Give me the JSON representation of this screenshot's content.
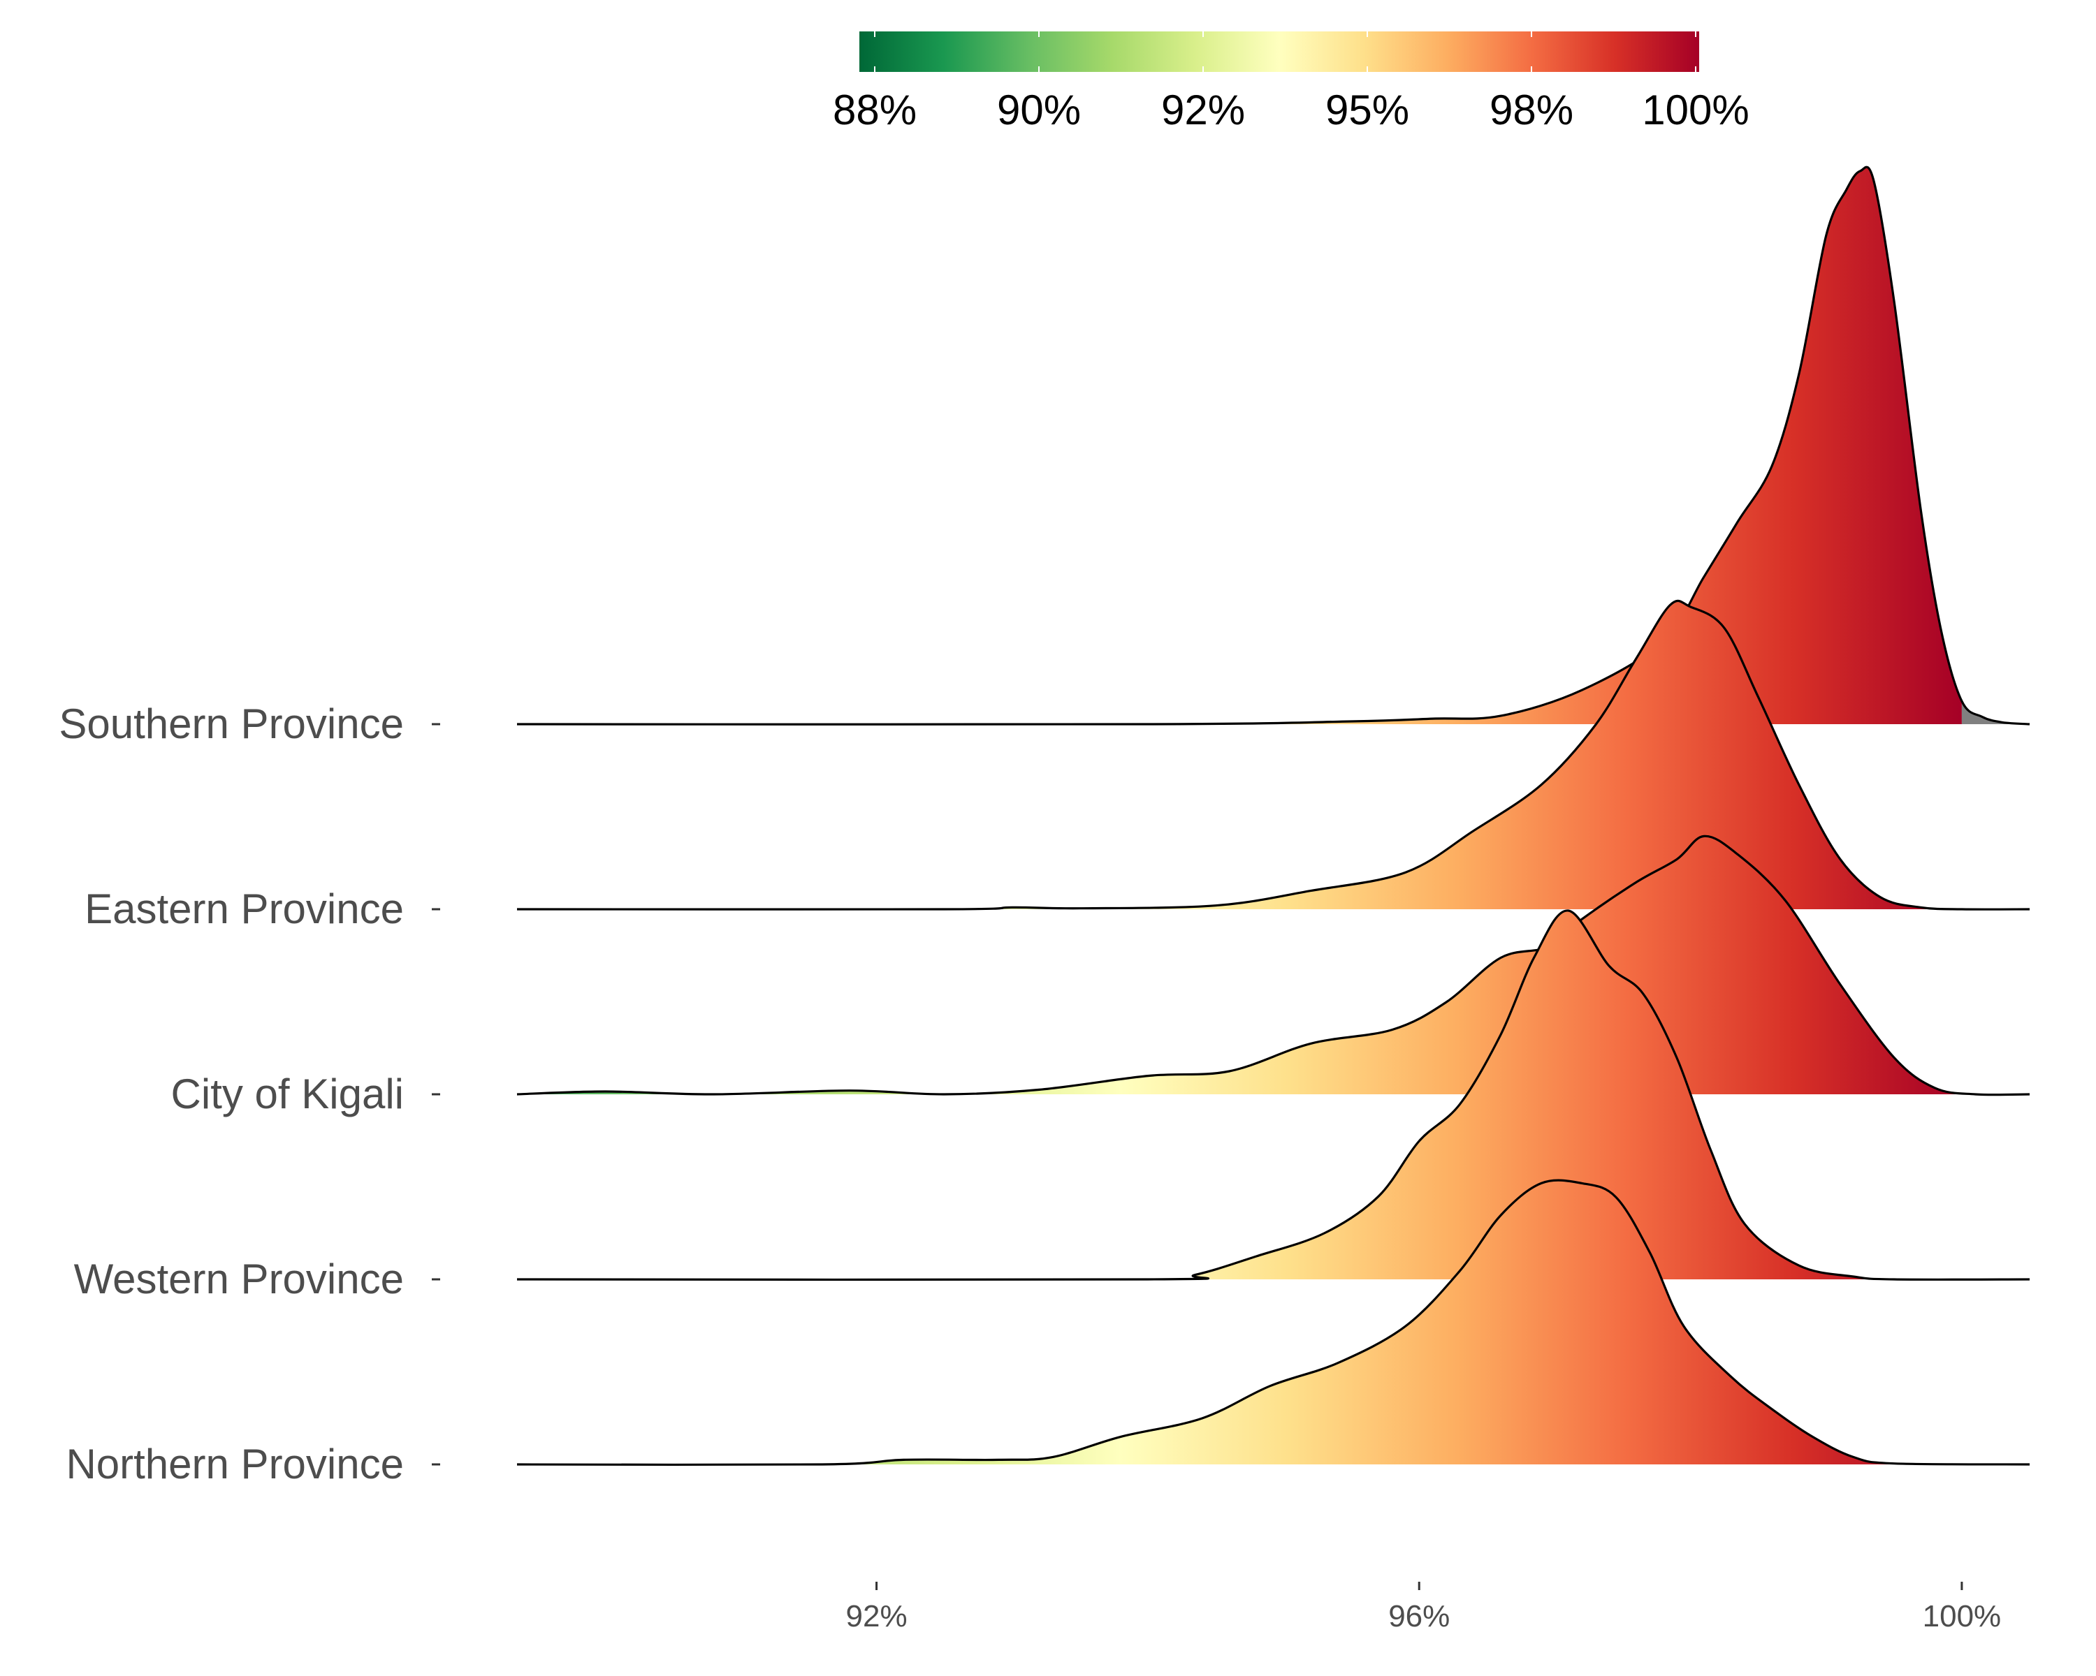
{
  "chart_data": {
    "type": "ridgeline",
    "title": "",
    "xlabel": "",
    "ylabel": "",
    "xlim": [
      89.35,
      100.5
    ],
    "x_ticks": [
      92,
      96,
      100
    ],
    "x_tick_labels": [
      "92%",
      "96%",
      "100%"
    ],
    "color_scale": {
      "palette": "RdYlGn (reversed)",
      "tick_labels": [
        "88%",
        "90%",
        "92%",
        "95%",
        "98%",
        "100%"
      ],
      "legend_position": "top",
      "stops": [
        {
          "offset": 0.0,
          "color": "#006837"
        },
        {
          "offset": 0.1,
          "color": "#1a9850"
        },
        {
          "offset": 0.2,
          "color": "#66bd63"
        },
        {
          "offset": 0.3,
          "color": "#a6d96a"
        },
        {
          "offset": 0.4,
          "color": "#d9ef8b"
        },
        {
          "offset": 0.5,
          "color": "#ffffbf"
        },
        {
          "offset": 0.6,
          "color": "#fee08b"
        },
        {
          "offset": 0.7,
          "color": "#fdae61"
        },
        {
          "offset": 0.8,
          "color": "#f46d43"
        },
        {
          "offset": 0.9,
          "color": "#d73027"
        },
        {
          "offset": 1.0,
          "color": "#a50026"
        }
      ],
      "out_of_range_color": "#808080"
    },
    "series": [
      {
        "name": "Southern Province",
        "density_points": [
          [
            89.35,
            0
          ],
          [
            94,
            0
          ],
          [
            95.5,
            0.03
          ],
          [
            96.1,
            0.06
          ],
          [
            96.6,
            0.09
          ],
          [
            97.2,
            0.37
          ],
          [
            97.8,
            0.9
          ],
          [
            98.1,
            1.6
          ],
          [
            98.35,
            2.2
          ],
          [
            98.6,
            2.8
          ],
          [
            98.8,
            3.8
          ],
          [
            99.0,
            5.3
          ],
          [
            99.15,
            5.8
          ],
          [
            99.25,
            6.0
          ],
          [
            99.35,
            5.9
          ],
          [
            99.5,
            4.6
          ],
          [
            99.7,
            2.3
          ],
          [
            99.85,
            1.0
          ],
          [
            100.0,
            0.25
          ],
          [
            100.15,
            0.08
          ],
          [
            100.3,
            0.02
          ],
          [
            100.5,
            0
          ]
        ]
      },
      {
        "name": "Eastern Province",
        "density_points": [
          [
            89.35,
            0
          ],
          [
            92.5,
            0
          ],
          [
            93.0,
            0.02
          ],
          [
            93.5,
            0.01
          ],
          [
            94.5,
            0.04
          ],
          [
            95.2,
            0.2
          ],
          [
            95.9,
            0.4
          ],
          [
            96.4,
            0.85
          ],
          [
            96.9,
            1.35
          ],
          [
            97.3,
            2.0
          ],
          [
            97.6,
            2.72
          ],
          [
            97.85,
            3.3
          ],
          [
            98.0,
            3.28
          ],
          [
            98.25,
            3.05
          ],
          [
            98.5,
            2.3
          ],
          [
            98.8,
            1.35
          ],
          [
            99.1,
            0.55
          ],
          [
            99.4,
            0.13
          ],
          [
            99.7,
            0.02
          ],
          [
            100.0,
            0
          ],
          [
            100.5,
            0
          ]
        ]
      },
      {
        "name": "City of Kigali",
        "density_points": [
          [
            89.35,
            0
          ],
          [
            90.0,
            0.03
          ],
          [
            90.8,
            0
          ],
          [
            91.8,
            0.04
          ],
          [
            92.5,
            0
          ],
          [
            93.2,
            0.05
          ],
          [
            94.0,
            0.2
          ],
          [
            94.6,
            0.25
          ],
          [
            95.2,
            0.55
          ],
          [
            95.8,
            0.7
          ],
          [
            96.2,
            1.0
          ],
          [
            96.6,
            1.48
          ],
          [
            96.95,
            1.6
          ],
          [
            97.2,
            1.9
          ],
          [
            97.6,
            2.3
          ],
          [
            97.9,
            2.55
          ],
          [
            98.1,
            2.8
          ],
          [
            98.35,
            2.6
          ],
          [
            98.7,
            2.1
          ],
          [
            99.1,
            1.2
          ],
          [
            99.5,
            0.4
          ],
          [
            99.8,
            0.07
          ],
          [
            100.1,
            0
          ],
          [
            100.5,
            0
          ]
        ]
      },
      {
        "name": "Western Province",
        "density_points": [
          [
            89.35,
            0
          ],
          [
            94.0,
            0
          ],
          [
            94.35,
            0.05
          ],
          [
            94.8,
            0.25
          ],
          [
            95.3,
            0.5
          ],
          [
            95.7,
            0.9
          ],
          [
            96.0,
            1.5
          ],
          [
            96.3,
            1.9
          ],
          [
            96.6,
            2.65
          ],
          [
            96.85,
            3.5
          ],
          [
            97.1,
            4.0
          ],
          [
            97.4,
            3.4
          ],
          [
            97.65,
            3.1
          ],
          [
            97.9,
            2.4
          ],
          [
            98.15,
            1.4
          ],
          [
            98.4,
            0.6
          ],
          [
            98.8,
            0.15
          ],
          [
            99.2,
            0.03
          ],
          [
            99.5,
            0
          ],
          [
            100.5,
            0
          ]
        ]
      },
      {
        "name": "Northern Province",
        "density_points": [
          [
            89.35,
            0
          ],
          [
            91.6,
            0
          ],
          [
            92.2,
            0.05
          ],
          [
            92.9,
            0.05
          ],
          [
            93.3,
            0.08
          ],
          [
            93.8,
            0.3
          ],
          [
            94.4,
            0.5
          ],
          [
            94.9,
            0.85
          ],
          [
            95.4,
            1.1
          ],
          [
            95.9,
            1.5
          ],
          [
            96.3,
            2.1
          ],
          [
            96.6,
            2.7
          ],
          [
            96.9,
            3.05
          ],
          [
            97.2,
            3.05
          ],
          [
            97.45,
            2.9
          ],
          [
            97.7,
            2.3
          ],
          [
            97.95,
            1.5
          ],
          [
            98.3,
            0.95
          ],
          [
            98.6,
            0.6
          ],
          [
            98.9,
            0.3
          ],
          [
            99.2,
            0.08
          ],
          [
            99.5,
            0.01
          ],
          [
            100.5,
            0
          ]
        ]
      }
    ]
  }
}
